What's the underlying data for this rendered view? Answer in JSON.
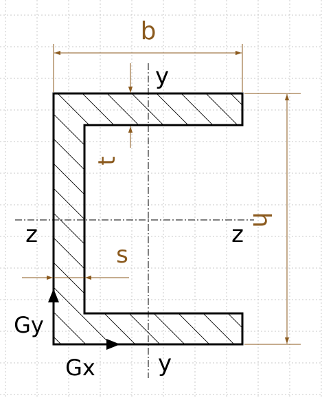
{
  "diagram": {
    "labels": {
      "width": "b",
      "height": "h",
      "flange_thickness": "t",
      "web_thickness": "s",
      "axis_z_left": "z",
      "axis_z_right": "z",
      "axis_y_top": "y",
      "axis_y_bottom": "y",
      "centroid_y": "Gy",
      "centroid_x": "Gx"
    },
    "colors": {
      "dimension": "#8B5A1E",
      "outline": "#000000",
      "grid": "#c8c8c8",
      "hatch": "#000000"
    }
  }
}
